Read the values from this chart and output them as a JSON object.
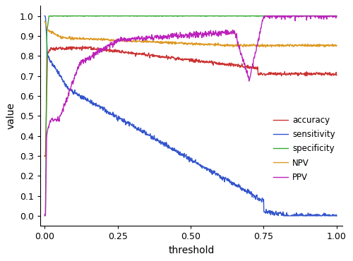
{
  "title": "",
  "xlabel": "threshold",
  "ylabel": "value",
  "xlim": [
    -0.015,
    1.02
  ],
  "ylim": [
    -0.05,
    1.05
  ],
  "line_colors": {
    "accuracy": "#cc3333",
    "sensitivity": "#3355cc",
    "specificity": "#33aa33",
    "NPV": "#dd9922",
    "PPV": "#bb22bb"
  },
  "legend_labels": [
    "accuracy",
    "sensitivity",
    "specificity",
    "NPV",
    "PPV"
  ],
  "background_color": "#ffffff",
  "xticks": [
    0.0,
    0.25,
    0.5,
    0.75,
    1.0
  ],
  "yticks": [
    0.0,
    0.1,
    0.2,
    0.3,
    0.4,
    0.5,
    0.6,
    0.7,
    0.8,
    0.9,
    1.0
  ]
}
